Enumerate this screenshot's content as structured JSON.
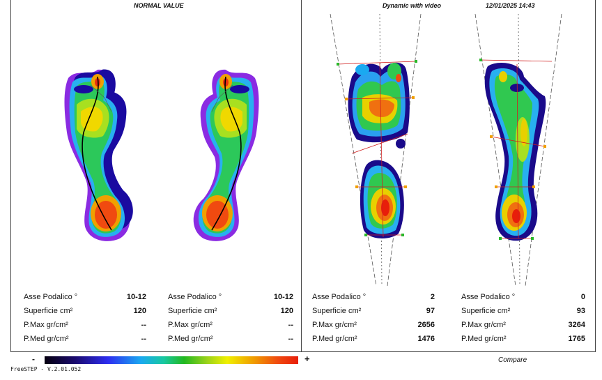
{
  "left_panel": {
    "title": "NORMAL VALUE"
  },
  "right_panel": {
    "title": "Dynamic with video",
    "datetime": "12/01/2025 14:43"
  },
  "stats": [
    {
      "rows": [
        {
          "label": "Asse Podalico °",
          "value": "10-12"
        },
        {
          "label": "Superficie cm²",
          "value": "120"
        },
        {
          "label": "P.Max gr/cm²",
          "value": "--"
        },
        {
          "label": "P.Med gr/cm²",
          "value": "--"
        }
      ]
    },
    {
      "rows": [
        {
          "label": "Asse Podalico °",
          "value": "10-12"
        },
        {
          "label": "Superficie cm²",
          "value": "120"
        },
        {
          "label": "P.Max gr/cm²",
          "value": "--"
        },
        {
          "label": "P.Med gr/cm²",
          "value": "--"
        }
      ]
    },
    {
      "rows": [
        {
          "label": "Asse Podalico °",
          "value": "2"
        },
        {
          "label": "Superficie cm²",
          "value": "97"
        },
        {
          "label": "P.Max gr/cm²",
          "value": "2656"
        },
        {
          "label": "P.Med gr/cm²",
          "value": "1476"
        }
      ]
    },
    {
      "rows": [
        {
          "label": "Asse Podalico °",
          "value": "0"
        },
        {
          "label": "Superficie cm²",
          "value": "93"
        },
        {
          "label": "P.Max gr/cm²",
          "value": "3264"
        },
        {
          "label": "P.Med gr/cm²",
          "value": "1765"
        }
      ]
    }
  ],
  "scale": {
    "min_label": "-",
    "max_label": "+"
  },
  "compare_label": "Compare",
  "version": "FreeSTEP - V.2.01.052"
}
